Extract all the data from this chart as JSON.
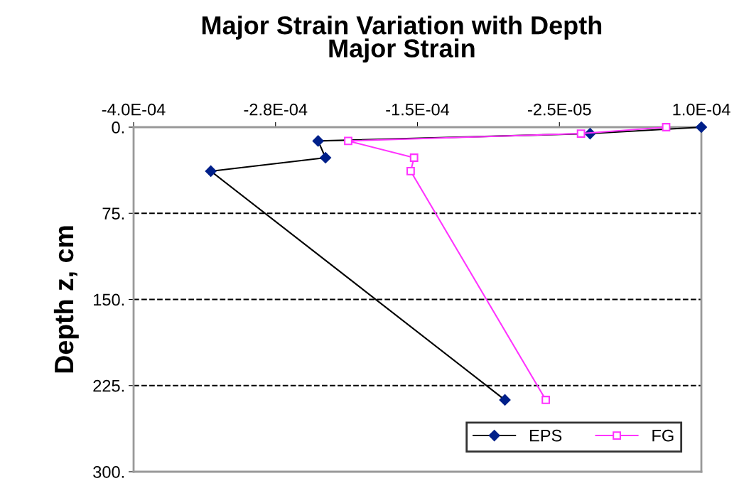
{
  "chart_data": {
    "type": "line",
    "title": "Major Strain Variation with Depth\nMajor Strain",
    "ylabel": "Depth z, cm",
    "xlim": [
      -0.0004,
      0.0001
    ],
    "xticks": [
      {
        "value": -0.0004,
        "label": "-4.0E-04"
      },
      {
        "value": -0.000275,
        "label": "-2.8E-04"
      },
      {
        "value": -0.00015,
        "label": "-1.5E-04"
      },
      {
        "value": -2.5e-05,
        "label": "-2.5E-05"
      },
      {
        "value": 0.0001,
        "label": "1.0E-04"
      }
    ],
    "ylim": [
      300,
      0
    ],
    "yticks": [
      {
        "value": 0,
        "label": "0."
      },
      {
        "value": 75,
        "label": "75."
      },
      {
        "value": 150,
        "label": "150."
      },
      {
        "value": 225,
        "label": "225."
      },
      {
        "value": 300,
        "label": "300."
      }
    ],
    "grid": "y",
    "legend": "bottom right",
    "series": [
      {
        "name": "EPS",
        "color": "#00208a",
        "marker": "diamond",
        "x": [
          0.0001,
          2e-06,
          -0.0002375,
          -0.000231,
          -0.000332,
          -7.3e-05
        ],
        "values": [
          0,
          5.6,
          12,
          26.6,
          38.3,
          237.5
        ]
      },
      {
        "name": "FG",
        "color": "#ff33ff",
        "marker": "square",
        "x": [
          6.9e-05,
          -6e-06,
          -0.000211,
          -0.000153,
          -0.000156,
          -3.7e-05
        ],
        "values": [
          0,
          5.6,
          12,
          26.6,
          38.3,
          237.5
        ]
      }
    ]
  }
}
